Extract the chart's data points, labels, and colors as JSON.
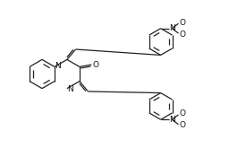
{
  "bg_color": "#ffffff",
  "bond_color": "#222222",
  "bond_lw": 0.9,
  "text_color": "#111111",
  "fig_width": 2.75,
  "fig_height": 1.65,
  "dpi": 100,
  "xlim": [
    0,
    11
  ],
  "ylim": [
    0,
    6.6
  ]
}
